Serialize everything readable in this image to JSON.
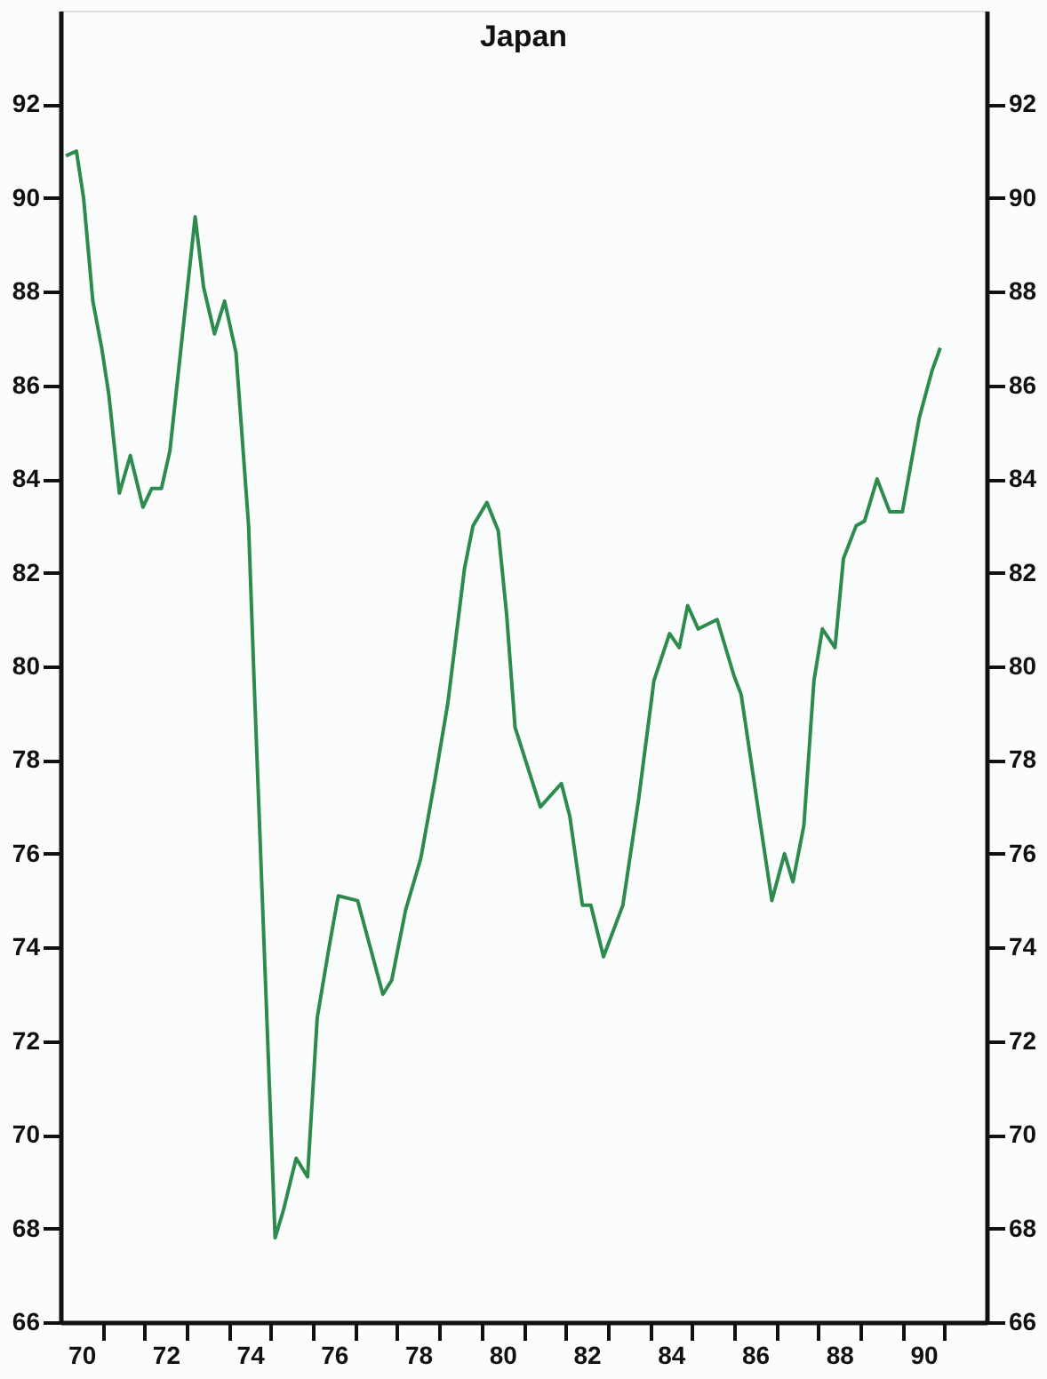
{
  "chart_data": {
    "type": "line",
    "title": "Japan",
    "x": [
      69.63,
      69.88,
      70.05,
      70.27,
      70.48,
      70.65,
      70.9,
      71.16,
      71.46,
      71.67,
      71.9,
      72.1,
      72.7,
      72.9,
      73.16,
      73.4,
      73.67,
      73.97,
      74.1,
      74.6,
      74.8,
      75.1,
      75.37,
      75.6,
      75.9,
      76.1,
      76.56,
      77.16,
      77.37,
      77.7,
      78.06,
      78.4,
      78.7,
      79.1,
      79.3,
      79.63,
      79.9,
      80.1,
      80.3,
      80.9,
      81.4,
      81.6,
      81.9,
      82.1,
      82.4,
      82.86,
      83.24,
      83.6,
      83.97,
      84.2,
      84.4,
      84.65,
      85.1,
      85.5,
      85.67,
      86.1,
      86.4,
      86.7,
      86.9,
      87.16,
      87.4,
      87.6,
      87.9,
      88.1,
      88.4,
      88.6,
      88.9,
      89.2,
      89.5,
      89.9,
      90.2,
      90.4
    ],
    "series": [
      {
        "color": "#2e8b4e",
        "values": [
          90.9,
          91.0,
          90.0,
          87.8,
          86.8,
          85.8,
          83.7,
          84.5,
          83.4,
          83.8,
          83.8,
          84.6,
          89.6,
          88.1,
          87.1,
          87.8,
          86.7,
          83.0,
          79.7,
          67.8,
          68.4,
          69.5,
          69.1,
          72.5,
          74.1,
          75.1,
          75.0,
          73.0,
          73.3,
          74.8,
          75.9,
          77.6,
          79.2,
          82.1,
          83.0,
          83.5,
          82.9,
          81.1,
          78.7,
          77.0,
          77.5,
          76.8,
          74.9,
          74.9,
          73.8,
          74.9,
          77.2,
          79.7,
          80.7,
          80.4,
          81.3,
          80.8,
          81.0,
          79.8,
          79.4,
          76.8,
          75.0,
          76.0,
          75.4,
          76.6,
          79.7,
          80.8,
          80.4,
          82.3,
          83.0,
          83.1,
          84.0,
          83.3,
          83.3,
          85.3,
          86.3,
          86.8
        ]
      }
    ],
    "xlim": [
      69.5,
      91.5
    ],
    "xticks": [
      70,
      {
        "value": 70.5,
        "label": null
      },
      {
        "value": 71.5,
        "label": null
      },
      72,
      {
        "value": 72.5,
        "label": null
      },
      {
        "value": 73.5,
        "label": null
      },
      74,
      {
        "value": 74.5,
        "label": null
      },
      {
        "value": 75.5,
        "label": null
      },
      76,
      {
        "value": 76.5,
        "label": null
      },
      {
        "value": 77.5,
        "label": null
      },
      78,
      {
        "value": 78.5,
        "label": null
      },
      {
        "value": 79.5,
        "label": null
      },
      80,
      {
        "value": 80.5,
        "label": null
      },
      {
        "value": 81.5,
        "label": null
      },
      82,
      {
        "value": 82.5,
        "label": null
      },
      {
        "value": 83.5,
        "label": null
      },
      84,
      {
        "value": 84.5,
        "label": null
      },
      {
        "value": 85.5,
        "label": null
      },
      86,
      {
        "value": 86.5,
        "label": null
      },
      {
        "value": 87.5,
        "label": null
      },
      88,
      {
        "value": 88.5,
        "label": null
      },
      {
        "value": 89.5,
        "label": null
      },
      90,
      {
        "value": 90.5,
        "label": null
      }
    ],
    "ylim": [
      66,
      94
    ],
    "yticks": [
      66,
      68,
      70,
      72,
      74,
      76,
      78,
      80,
      82,
      84,
      86,
      88,
      90,
      92
    ],
    "y2lim": [
      66,
      94
    ],
    "y2ticks": [
      66,
      68,
      70,
      72,
      74,
      76,
      78,
      80,
      82,
      84,
      86,
      88,
      90,
      92
    ],
    "grid": false,
    "line_style": "solid",
    "marker": "none"
  }
}
